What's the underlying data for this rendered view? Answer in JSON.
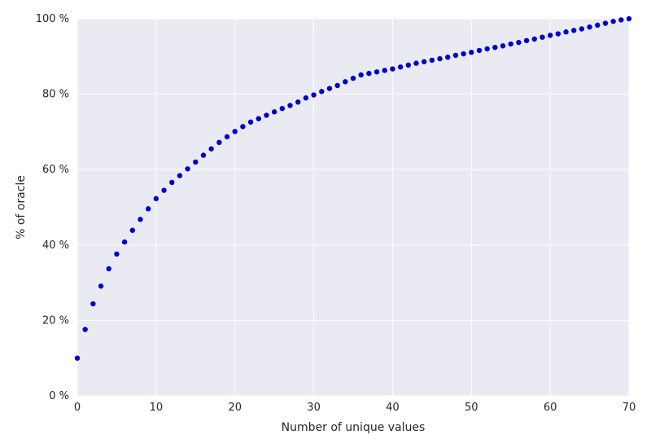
{
  "chart_data": {
    "type": "scatter",
    "title": "",
    "xlabel": "Number of unique values",
    "ylabel": "% of oracle",
    "xlim": [
      0,
      70
    ],
    "ylim": [
      0,
      100
    ],
    "grid": true,
    "colors": {
      "background": "#eaeaf2",
      "grid": "#ffffff",
      "marker": "#0000cc"
    },
    "x_ticks": [
      0,
      10,
      20,
      30,
      40,
      50,
      60,
      70
    ],
    "x_tick_labels": [
      "0",
      "10",
      "20",
      "30",
      "40",
      "50",
      "60",
      "70"
    ],
    "y_ticks": [
      0,
      20,
      40,
      60,
      80,
      100
    ],
    "y_tick_labels": [
      "0 %",
      "20 %",
      "40 %",
      "60 %",
      "80 %",
      "100 %"
    ],
    "series": [
      {
        "x": [
          0,
          1,
          2,
          3,
          4,
          5,
          6,
          7,
          8,
          9,
          10,
          11,
          12,
          13,
          14,
          15,
          16,
          17,
          18,
          19,
          20,
          21,
          22,
          23,
          24,
          25,
          26,
          27,
          28,
          29,
          30,
          31,
          32,
          33,
          34,
          35,
          36,
          37,
          38,
          39,
          40,
          41,
          42,
          43,
          44,
          45,
          46,
          47,
          48,
          49,
          50,
          51,
          52,
          53,
          54,
          55,
          56,
          57,
          58,
          59,
          60,
          61,
          62,
          63,
          64,
          65,
          66,
          67,
          68,
          69,
          70
        ],
        "y": [
          10.0,
          17.6,
          24.4,
          29.1,
          33.7,
          37.6,
          40.8,
          43.9,
          46.8,
          49.6,
          52.3,
          54.5,
          56.6,
          58.4,
          60.2,
          62.0,
          63.8,
          65.5,
          67.2,
          68.7,
          70.1,
          71.4,
          72.6,
          73.5,
          74.4,
          75.3,
          76.2,
          77.0,
          77.9,
          79.0,
          79.8,
          80.7,
          81.5,
          82.3,
          83.3,
          84.2,
          85.1,
          85.5,
          85.9,
          86.3,
          86.7,
          87.2,
          87.7,
          88.2,
          88.6,
          89.0,
          89.4,
          89.8,
          90.3,
          90.7,
          91.1,
          91.6,
          92.0,
          92.4,
          92.8,
          93.3,
          93.7,
          94.2,
          94.6,
          95.1,
          95.6,
          96.0,
          96.5,
          96.9,
          97.3,
          97.8,
          98.3,
          98.8,
          99.3,
          99.7,
          100.0
        ]
      }
    ]
  }
}
